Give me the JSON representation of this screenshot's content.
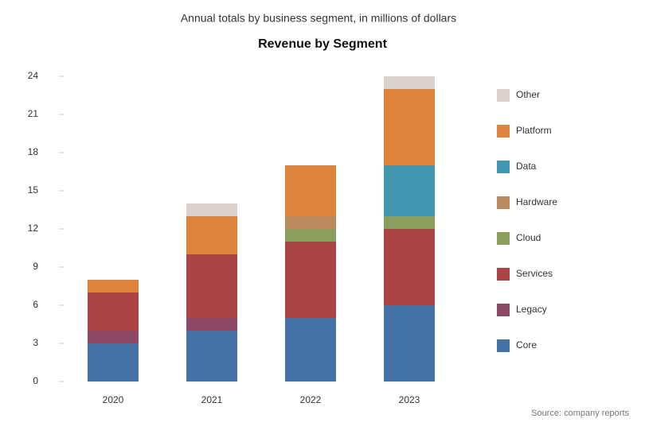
{
  "chart_data": {
    "type": "stacked_bar",
    "title": "Revenue by Segment",
    "subtitle": "Annual totals by business segment, in millions of dollars",
    "categories": [
      "2020",
      "2021",
      "2022",
      "2023"
    ],
    "series": [
      {
        "name": "Core",
        "color": "#4471a6",
        "values": [
          3,
          4,
          5,
          6
        ]
      },
      {
        "name": "Legacy",
        "color": "#8c4a66",
        "values": [
          1,
          1,
          0,
          0
        ]
      },
      {
        "name": "Services",
        "color": "#a94545",
        "values": [
          3,
          5,
          6,
          6
        ]
      },
      {
        "name": "Cloud",
        "color": "#8a9e5e",
        "values": [
          0,
          0,
          1,
          1
        ]
      },
      {
        "name": "Hardware",
        "color": "#b88a5e",
        "values": [
          0,
          0,
          1,
          0
        ]
      },
      {
        "name": "Data",
        "color": "#4297b0",
        "values": [
          0,
          0,
          0,
          4
        ]
      },
      {
        "name": "Platform",
        "color": "#dc843e",
        "values": [
          1,
          3,
          4,
          6
        ]
      },
      {
        "name": "Other",
        "color": "#dcd0cc",
        "values": [
          0,
          1,
          0,
          1
        ]
      }
    ],
    "ylim": [
      0,
      24
    ],
    "yticks": [
      0,
      3,
      6,
      9,
      12,
      15,
      18,
      21,
      24
    ],
    "legend": "right",
    "source": "Source: company reports"
  }
}
